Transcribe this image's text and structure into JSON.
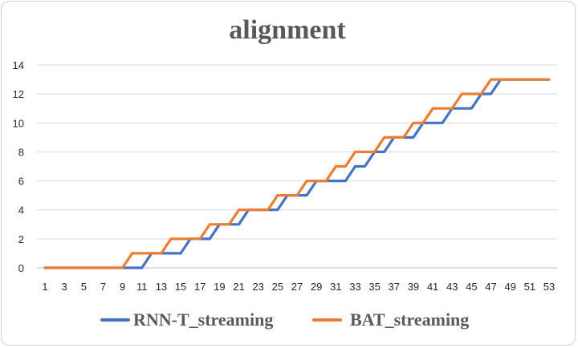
{
  "chart_data": {
    "type": "line",
    "title": "alignment",
    "xlabel": "",
    "ylabel": "",
    "x": [
      1,
      2,
      3,
      4,
      5,
      6,
      7,
      8,
      9,
      10,
      11,
      12,
      13,
      14,
      15,
      16,
      17,
      18,
      19,
      20,
      21,
      22,
      23,
      24,
      25,
      26,
      27,
      28,
      29,
      30,
      31,
      32,
      33,
      34,
      35,
      36,
      37,
      38,
      39,
      40,
      41,
      42,
      43,
      44,
      45,
      46,
      47,
      48,
      49,
      50,
      51,
      52,
      53
    ],
    "x_tick_labels": [
      "1",
      "3",
      "5",
      "7",
      "9",
      "11",
      "13",
      "15",
      "17",
      "19",
      "21",
      "23",
      "25",
      "27",
      "29",
      "31",
      "33",
      "35",
      "37",
      "39",
      "41",
      "43",
      "45",
      "47",
      "49",
      "51",
      "53"
    ],
    "ylim": [
      0,
      14
    ],
    "y_ticks": [
      0,
      2,
      4,
      6,
      8,
      10,
      12,
      14
    ],
    "grid": "horizontal",
    "legend_position": "bottom",
    "series": [
      {
        "name": "RNN-T_streaming",
        "color": "#4472c4",
        "values": [
          0,
          0,
          0,
          0,
          0,
          0,
          0,
          0,
          0,
          0,
          0,
          1,
          1,
          1,
          1,
          2,
          2,
          2,
          3,
          3,
          3,
          4,
          4,
          4,
          4,
          5,
          5,
          5,
          6,
          6,
          6,
          6,
          7,
          7,
          8,
          8,
          9,
          9,
          9,
          10,
          10,
          10,
          11,
          11,
          11,
          12,
          12,
          13,
          13,
          13,
          13,
          13,
          13
        ]
      },
      {
        "name": "BAT_streaming",
        "color": "#ed7d31",
        "values": [
          0,
          0,
          0,
          0,
          0,
          0,
          0,
          0,
          0,
          1,
          1,
          1,
          1,
          2,
          2,
          2,
          2,
          3,
          3,
          3,
          4,
          4,
          4,
          4,
          5,
          5,
          5,
          6,
          6,
          6,
          7,
          7,
          8,
          8,
          8,
          9,
          9,
          9,
          10,
          10,
          11,
          11,
          11,
          12,
          12,
          12,
          13,
          13,
          13,
          13,
          13,
          13,
          13
        ]
      }
    ]
  }
}
